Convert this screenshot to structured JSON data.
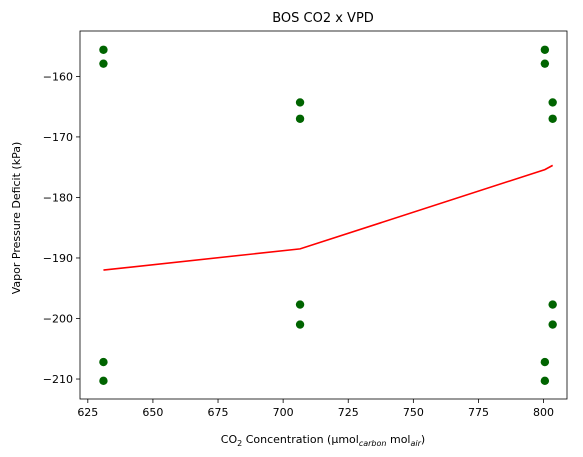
{
  "chart_data": {
    "type": "scatter",
    "title": "BOS CO2 x VPD",
    "xlabel": {
      "pre": "CO",
      "sub2": "2",
      "mid": " Concentration (µmol",
      "sub_carbon": "carbon",
      "mid2": " mol",
      "sub_air": "air",
      "post": ")"
    },
    "ylabel": "Vapor Pressure Deficit (kPa)",
    "xlim": [
      622,
      809
    ],
    "ylim": [
      -213.3,
      -152.5
    ],
    "xticks": [
      625,
      650,
      675,
      700,
      725,
      750,
      775,
      800
    ],
    "yticks": [
      -210,
      -200,
      -190,
      -180,
      -170,
      -160
    ],
    "grid": false,
    "colors": {
      "points": "#006400",
      "line": "#ff0000"
    },
    "points": [
      {
        "x": 631,
        "y": -155.6
      },
      {
        "x": 631,
        "y": -157.9
      },
      {
        "x": 631,
        "y": -207.2
      },
      {
        "x": 631,
        "y": -210.3
      },
      {
        "x": 706.5,
        "y": -164.3
      },
      {
        "x": 706.5,
        "y": -167.0
      },
      {
        "x": 706.5,
        "y": -197.7
      },
      {
        "x": 706.5,
        "y": -201.0
      },
      {
        "x": 800.5,
        "y": -155.6
      },
      {
        "x": 800.5,
        "y": -157.9
      },
      {
        "x": 800.5,
        "y": -207.2
      },
      {
        "x": 800.5,
        "y": -210.3
      },
      {
        "x": 803.5,
        "y": -164.3
      },
      {
        "x": 803.5,
        "y": -167.0
      },
      {
        "x": 803.5,
        "y": -197.7
      },
      {
        "x": 803.5,
        "y": -201.0
      }
    ],
    "trend_line": [
      {
        "x": 631,
        "y": -192.0
      },
      {
        "x": 706.5,
        "y": -188.5
      },
      {
        "x": 800.5,
        "y": -175.4
      },
      {
        "x": 803.5,
        "y": -174.7
      }
    ]
  }
}
